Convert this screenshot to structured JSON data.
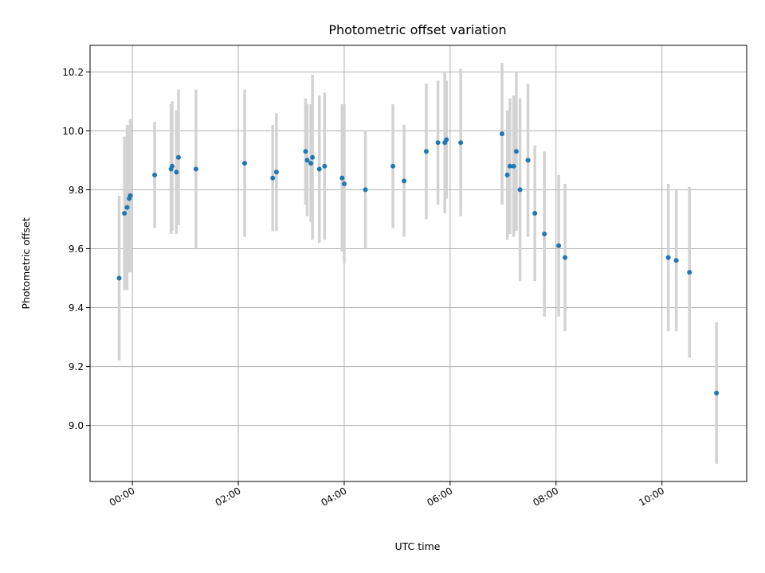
{
  "chart_data": {
    "type": "scatter",
    "title": "Photometric offset variation",
    "xlabel": "UTC time",
    "ylabel": "Photometric offset",
    "x_unit": "hours UTC",
    "xlim": [
      -0.8,
      11.6
    ],
    "ylim": [
      8.81,
      10.29
    ],
    "x_ticks": [
      0,
      2,
      4,
      6,
      8,
      10
    ],
    "x_tick_labels": [
      "00:00",
      "02:00",
      "04:00",
      "06:00",
      "08:00",
      "10:00"
    ],
    "y_ticks": [
      9.0,
      9.2,
      9.4,
      9.6,
      9.8,
      10.0,
      10.2
    ],
    "y_tick_labels": [
      "9.0",
      "9.2",
      "9.4",
      "9.6",
      "9.8",
      "10.0",
      "10.2"
    ],
    "grid": true,
    "colors": {
      "point": "#1f77b4",
      "errorbar": "#d3d3d3",
      "grid": "#b0b0b0"
    },
    "points": [
      {
        "x": -0.25,
        "y": 9.5,
        "err": 0.28
      },
      {
        "x": -0.15,
        "y": 9.72,
        "err": 0.26
      },
      {
        "x": -0.1,
        "y": 9.74,
        "err": 0.28
      },
      {
        "x": -0.06,
        "y": 9.77,
        "err": 0.25
      },
      {
        "x": -0.04,
        "y": 9.78,
        "err": 0.26
      },
      {
        "x": 0.42,
        "y": 9.85,
        "err": 0.18
      },
      {
        "x": 0.73,
        "y": 9.87,
        "err": 0.22
      },
      {
        "x": 0.75,
        "y": 9.88,
        "err": 0.22
      },
      {
        "x": 0.83,
        "y": 9.86,
        "err": 0.21
      },
      {
        "x": 0.87,
        "y": 9.91,
        "err": 0.23
      },
      {
        "x": 1.2,
        "y": 9.87,
        "err": 0.27
      },
      {
        "x": 2.12,
        "y": 9.89,
        "err": 0.25
      },
      {
        "x": 2.65,
        "y": 9.84,
        "err": 0.18
      },
      {
        "x": 2.72,
        "y": 9.86,
        "err": 0.2
      },
      {
        "x": 3.27,
        "y": 9.93,
        "err": 0.18
      },
      {
        "x": 3.3,
        "y": 9.9,
        "err": 0.19
      },
      {
        "x": 3.37,
        "y": 9.89,
        "err": 0.2
      },
      {
        "x": 3.4,
        "y": 9.91,
        "err": 0.28
      },
      {
        "x": 3.53,
        "y": 9.87,
        "err": 0.25
      },
      {
        "x": 3.63,
        "y": 9.88,
        "err": 0.25
      },
      {
        "x": 3.96,
        "y": 9.84,
        "err": 0.25
      },
      {
        "x": 4.0,
        "y": 9.82,
        "err": 0.27
      },
      {
        "x": 4.4,
        "y": 9.8,
        "err": 0.2
      },
      {
        "x": 4.92,
        "y": 9.88,
        "err": 0.21
      },
      {
        "x": 5.13,
        "y": 9.83,
        "err": 0.19
      },
      {
        "x": 5.55,
        "y": 9.93,
        "err": 0.23
      },
      {
        "x": 5.77,
        "y": 9.96,
        "err": 0.21
      },
      {
        "x": 5.9,
        "y": 9.96,
        "err": 0.24
      },
      {
        "x": 5.93,
        "y": 9.97,
        "err": 0.2
      },
      {
        "x": 6.2,
        "y": 9.96,
        "err": 0.25
      },
      {
        "x": 6.98,
        "y": 9.99,
        "err": 0.24
      },
      {
        "x": 7.08,
        "y": 9.85,
        "err": 0.22
      },
      {
        "x": 7.13,
        "y": 9.88,
        "err": 0.23
      },
      {
        "x": 7.2,
        "y": 9.88,
        "err": 0.24
      },
      {
        "x": 7.25,
        "y": 9.93,
        "err": 0.27
      },
      {
        "x": 7.32,
        "y": 9.8,
        "err": 0.31
      },
      {
        "x": 7.47,
        "y": 9.9,
        "err": 0.26
      },
      {
        "x": 7.6,
        "y": 9.72,
        "err": 0.23
      },
      {
        "x": 7.78,
        "y": 9.65,
        "err": 0.28
      },
      {
        "x": 8.05,
        "y": 9.61,
        "err": 0.24
      },
      {
        "x": 8.17,
        "y": 9.57,
        "err": 0.25
      },
      {
        "x": 10.12,
        "y": 9.57,
        "err": 0.25
      },
      {
        "x": 10.27,
        "y": 9.56,
        "err": 0.24
      },
      {
        "x": 10.52,
        "y": 9.52,
        "err": 0.29
      },
      {
        "x": 11.03,
        "y": 9.11,
        "err": 0.24
      }
    ]
  }
}
